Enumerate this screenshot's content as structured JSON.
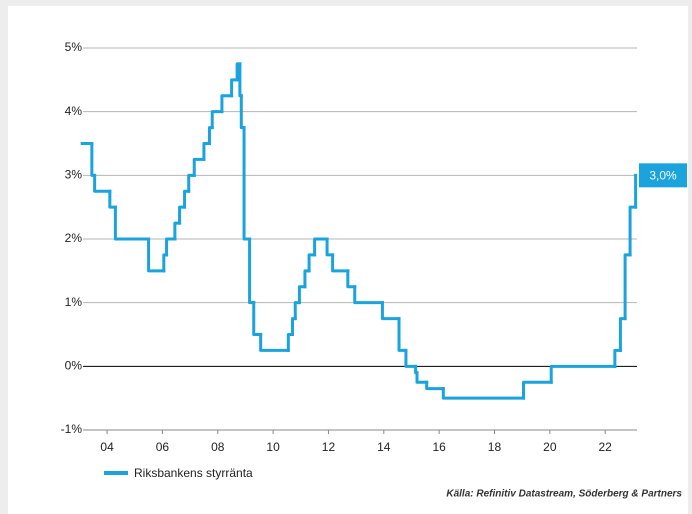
{
  "chart_data": {
    "type": "line",
    "step": "post",
    "xlim": [
      2003.13,
      2023.15
    ],
    "xticks": [
      {
        "value": 2004,
        "label": "04"
      },
      {
        "value": 2006,
        "label": "06"
      },
      {
        "value": 2008,
        "label": "08"
      },
      {
        "value": 2010,
        "label": "10"
      },
      {
        "value": 2012,
        "label": "12"
      },
      {
        "value": 2014,
        "label": "14"
      },
      {
        "value": 2016,
        "label": "16"
      },
      {
        "value": 2018,
        "label": "18"
      },
      {
        "value": 2020,
        "label": "20"
      },
      {
        "value": 2022,
        "label": "22"
      }
    ],
    "ylim": [
      -1,
      5
    ],
    "yticks": [
      {
        "value": -1,
        "label": "-1%"
      },
      {
        "value": 0,
        "label": "0%"
      },
      {
        "value": 1,
        "label": "1%"
      },
      {
        "value": 2,
        "label": "2%"
      },
      {
        "value": 3,
        "label": "3%"
      },
      {
        "value": 4,
        "label": "4%"
      },
      {
        "value": 5,
        "label": "5%"
      }
    ],
    "grid": true,
    "x": [
      2003.1,
      2003.45,
      2003.55,
      2004.1,
      2004.3,
      2005.5,
      2006.05,
      2006.15,
      2006.45,
      2006.62,
      2006.8,
      2006.95,
      2007.15,
      2007.5,
      2007.7,
      2007.8,
      2008.15,
      2008.5,
      2008.7,
      2008.8,
      2008.85,
      2008.95,
      2009.15,
      2009.3,
      2009.55,
      2010.55,
      2010.7,
      2010.8,
      2010.95,
      2011.15,
      2011.3,
      2011.5,
      2011.95,
      2012.15,
      2012.7,
      2012.95,
      2013.95,
      2014.55,
      2014.8,
      2015.15,
      2015.2,
      2015.55,
      2016.15,
      2019.05,
      2020.05,
      2022.35,
      2022.55,
      2022.72,
      2022.9,
      2023.1
    ],
    "series": [
      {
        "name": "Riksbankens styrränta",
        "color": "#1aa3dc",
        "values": [
          3.5,
          3.0,
          2.75,
          2.5,
          2.0,
          1.5,
          1.75,
          2.0,
          2.25,
          2.5,
          2.75,
          3.0,
          3.25,
          3.5,
          3.75,
          4.0,
          4.25,
          4.5,
          4.75,
          4.25,
          3.75,
          2.0,
          1.0,
          0.5,
          0.25,
          0.5,
          0.75,
          1.0,
          1.25,
          1.5,
          1.75,
          2.0,
          1.75,
          1.5,
          1.25,
          1.0,
          0.75,
          0.25,
          0.0,
          -0.1,
          -0.25,
          -0.35,
          -0.5,
          -0.25,
          0.0,
          0.25,
          0.75,
          1.75,
          2.5,
          3.0
        ]
      }
    ],
    "annotation": {
      "text": "3,0%",
      "value": 3.0
    },
    "source": "Källa: Refinitiv Datastream, Söderberg & Partners"
  }
}
